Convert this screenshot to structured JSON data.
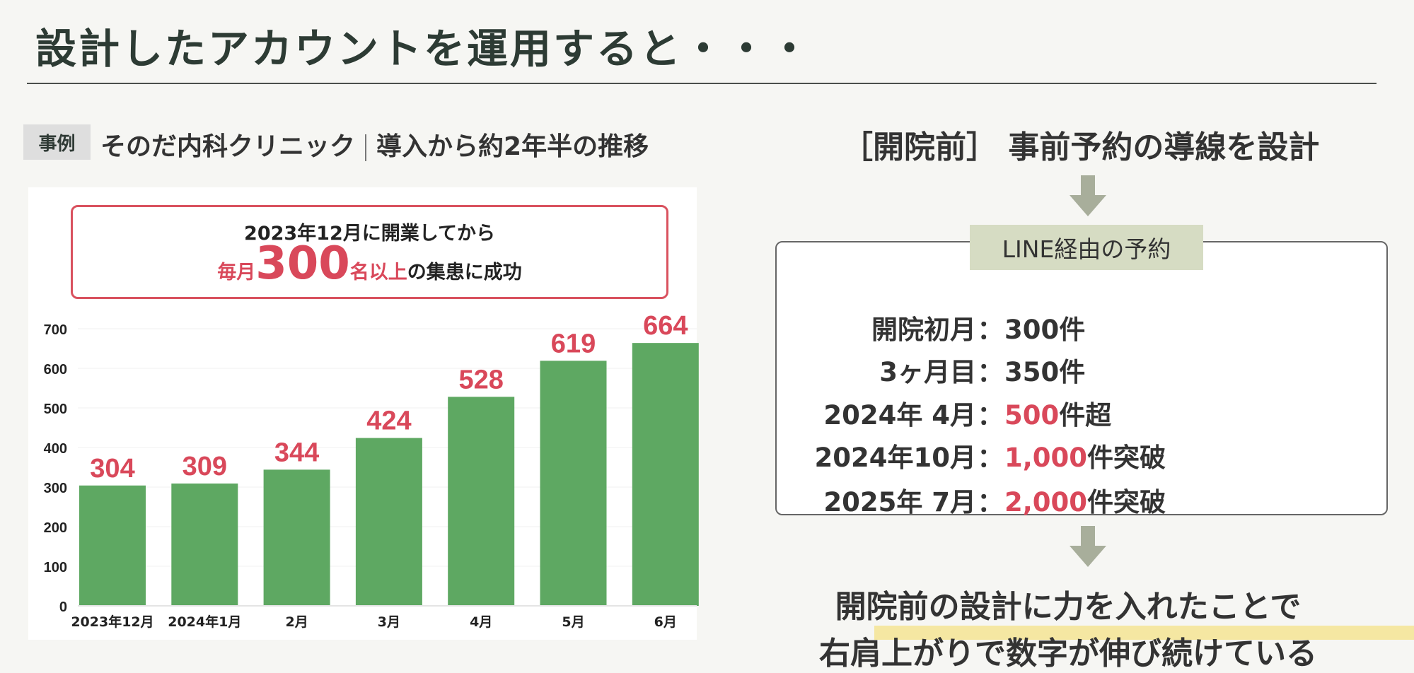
{
  "title": "設計したアカウントを運用すると・・・",
  "case": {
    "chip": "事例",
    "clinic": "そのだ内科クリニック",
    "period": "導入から約2年半の推移"
  },
  "callout": {
    "line1": "2023年12月に開業してから",
    "prefix": "毎月",
    "big": "300",
    "suffix": "名以上",
    "rest": "の集患に成功"
  },
  "right": {
    "heading": "［開院前］ 事前予約の導線を設計",
    "box_label": "LINE経由の予約",
    "rows": [
      {
        "k": "開院初月",
        "c": "：",
        "v": "",
        "after": "300件"
      },
      {
        "k": "3ヶ月目",
        "c": "：",
        "v": "",
        "after": "350件"
      },
      {
        "k": "2024年  4月",
        "c": "：",
        "v": "500",
        "after": "件超"
      },
      {
        "k": "2024年10月",
        "c": "：",
        "v": "1,000",
        "after": "件突破"
      },
      {
        "k": "2025年  7月",
        "c": "：",
        "v": "2,000",
        "after": "件突破"
      }
    ],
    "conclusion1": "開院前の設計に力を入れたことで",
    "conclusion2": "右肩上がりで数字が伸び続けている"
  },
  "chart_data": {
    "type": "bar",
    "categories": [
      "2023年12月",
      "2024年1月",
      "2月",
      "3月",
      "4月",
      "5月",
      "6月"
    ],
    "values": [
      304,
      309,
      344,
      424,
      528,
      619,
      664
    ],
    "yticks": [
      0,
      100,
      200,
      300,
      400,
      500,
      600,
      700
    ],
    "ylim": [
      0,
      700
    ],
    "title": "",
    "xlabel": "",
    "ylabel": "",
    "colors": {
      "bar": "#5ea862",
      "label": "#d9485a"
    }
  }
}
